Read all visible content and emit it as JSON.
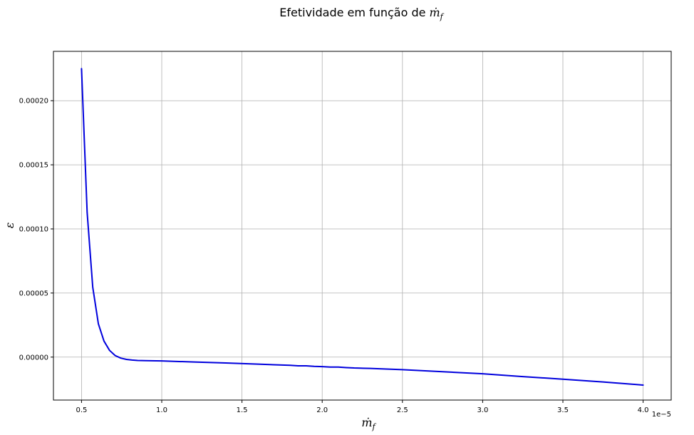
{
  "chart_data": {
    "type": "line",
    "title": "Efetividade em função de ṁ_f",
    "title_plain": "Efetividade em função de",
    "title_math": "ṁ",
    "title_math_sub": "f",
    "xlabel": "ṁ",
    "xlabel_sub": "f",
    "ylabel": "ε",
    "x_offset_text": "1e−5",
    "x_ticks": [
      0.5,
      1.0,
      1.5,
      2.0,
      2.5,
      3.0,
      3.5,
      4.0
    ],
    "x_tick_labels": [
      "0.5",
      "1.0",
      "1.5",
      "2.0",
      "2.5",
      "3.0",
      "3.5",
      "4.0"
    ],
    "y_ticks": [
      0.0,
      5e-05,
      0.0001,
      0.00015,
      0.0002
    ],
    "y_tick_labels": [
      "0.00000",
      "0.00005",
      "0.00010",
      "0.00015",
      "0.00020"
    ],
    "xlim": [
      0.325,
      4.175
    ],
    "ylim": [
      -3.35e-05,
      0.0002385
    ],
    "grid": true,
    "series": [
      {
        "color": "#0000dd",
        "x": [
          0.5,
          0.535,
          0.57,
          0.605,
          0.64,
          0.675,
          0.71,
          0.745,
          0.78,
          0.815,
          0.85,
          0.9,
          1.0,
          1.2,
          1.4,
          1.6,
          1.8,
          1.85,
          1.9,
          1.95,
          2.0,
          2.05,
          2.1,
          2.15,
          2.2,
          2.3,
          2.5,
          2.75,
          3.0,
          3.25,
          3.5,
          3.75,
          4.0
        ],
        "y": [
          0.000225,
          0.000113,
          5.45e-05,
          2.6e-05,
          1.25e-05,
          5.2e-06,
          1.2e-06,
          -8e-07,
          -1.8e-06,
          -2.3e-06,
          -2.6e-06,
          -2.8e-06,
          -3e-06,
          -3.8e-06,
          -4.6e-06,
          -5.5e-06,
          -6.4e-06,
          -6.8e-06,
          -6.8e-06,
          -7.2e-06,
          -7.4e-06,
          -7.8e-06,
          -7.8e-06,
          -8.2e-06,
          -8.5e-06,
          -8.8e-06,
          -9.8e-06,
          -1.14e-05,
          -1.3e-05,
          -1.52e-05,
          -1.72e-05,
          -1.94e-05,
          -2.18e-05
        ]
      }
    ]
  }
}
